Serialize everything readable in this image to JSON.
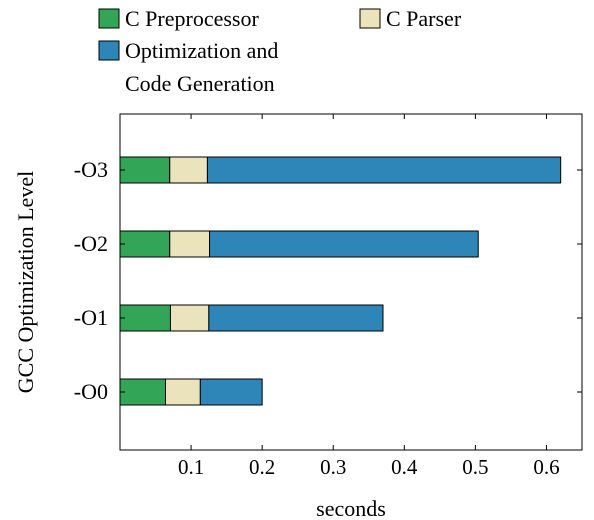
{
  "chart_data": {
    "type": "bar",
    "orientation": "horizontal",
    "stacked": true,
    "title": "",
    "xlabel": "seconds",
    "ylabel": "GCC Optimization Level",
    "categories": [
      "-O3",
      "-O2",
      "-O1",
      "-O0"
    ],
    "series": [
      {
        "name": "C Preprocessor",
        "color": "#33a557",
        "values": [
          0.07,
          0.07,
          0.071,
          0.064
        ]
      },
      {
        "name": "C Parser",
        "color": "#ebe3bb",
        "values": [
          0.053,
          0.056,
          0.054,
          0.049
        ]
      },
      {
        "name": "Optimization and Code Generation",
        "name_lines": [
          "Optimization and",
          "Code Generation"
        ],
        "color": "#2e86b8",
        "values": [
          0.497,
          0.378,
          0.245,
          0.087
        ]
      }
    ],
    "xlim": [
      0.0,
      0.65
    ],
    "xticks": [
      "0.1",
      "0.2",
      "0.3",
      "0.4",
      "0.5",
      "0.6"
    ],
    "grid": false,
    "legend_position": "top"
  }
}
